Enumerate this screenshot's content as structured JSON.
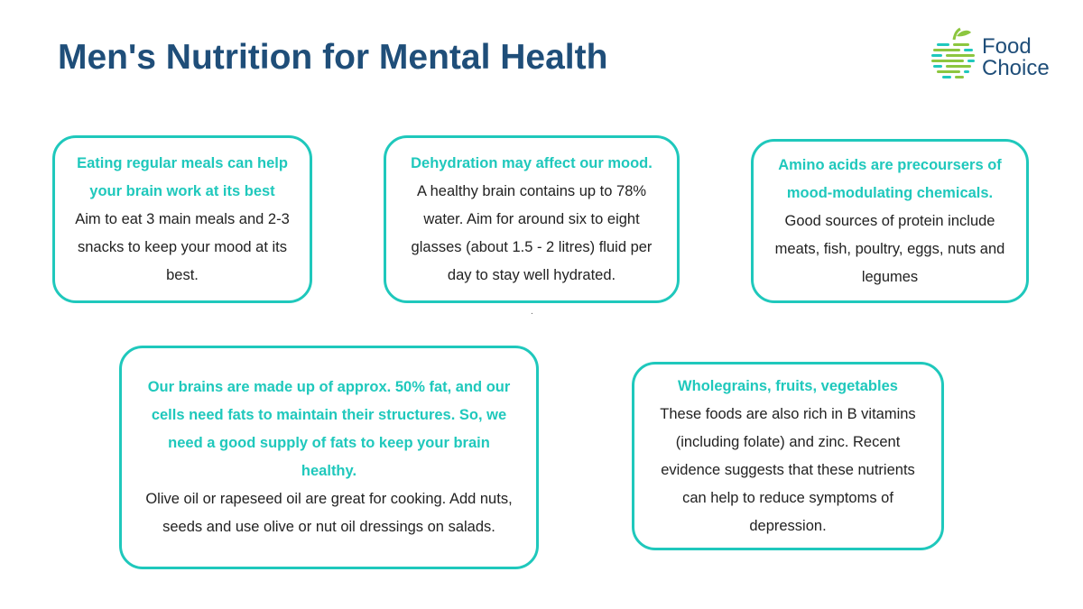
{
  "title": "Men's Nutrition for Mental Health",
  "logo": {
    "line1": "Food",
    "line2": "Choice",
    "icon": "apple-stripes-icon"
  },
  "colors": {
    "accent": "#1fc8bc",
    "title": "#1f4e79",
    "logo_green": "#8cc63f"
  },
  "cards": [
    {
      "heading": "Eating regular meals can help your brain work at its best",
      "body": "Aim to eat 3 main meals and 2-3 snacks to keep your mood at its best."
    },
    {
      "heading": "Dehydration may affect our mood.",
      "body": "A healthy brain contains up to 78% water. Aim for around six to eight glasses (about 1.5 - 2 litres) fluid per day to stay well hydrated."
    },
    {
      "heading": "Amino acids are precoursers of mood-modulating chemicals.",
      "body": "Good sources of protein include meats, fish, poultry, eggs, nuts and legumes"
    },
    {
      "heading": "Our brains are made up of approx. 50% fat, and our cells need fats to maintain their structures. So, we need a good supply of fats to keep your brain healthy.",
      "body": "Olive oil or rapeseed oil are great for cooking. Add nuts, seeds and use olive or nut oil dressings on salads."
    },
    {
      "heading": "Wholegrains, fruits, vegetables",
      "body": "These foods are also rich in B vitamins (including folate) and zinc. Recent evidence suggests that these nutrients can help to reduce symptoms of depression."
    }
  ]
}
